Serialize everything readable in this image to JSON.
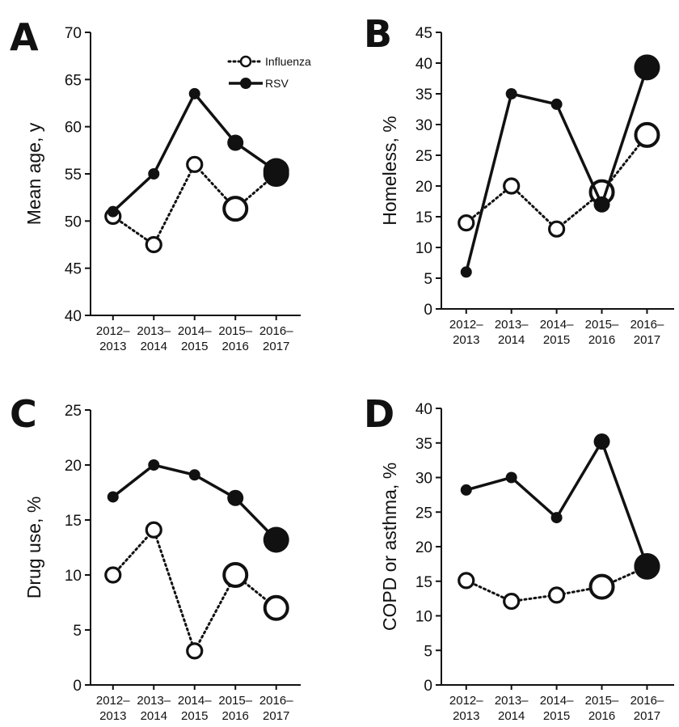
{
  "chart_data": [
    {
      "type": "line",
      "panel": "A",
      "ylabel": "Mean age, y",
      "ylim": [
        40,
        70
      ],
      "yticks": [
        40,
        45,
        50,
        55,
        60,
        65,
        70
      ],
      "categories": [
        [
          "2012–",
          "2013"
        ],
        [
          "2013–",
          "2014"
        ],
        [
          "2014–",
          "2015"
        ],
        [
          "2015–",
          "2016"
        ],
        [
          "2016–",
          "2017"
        ]
      ],
      "legend": {
        "position": "top-right",
        "items": [
          "Influenza",
          "RSV"
        ]
      },
      "series": [
        {
          "name": "Influenza",
          "style": "dotted-open",
          "values": [
            50.5,
            47.5,
            56,
            51.3,
            55
          ],
          "marker_sizes": [
            9,
            9,
            9,
            14,
            14
          ]
        },
        {
          "name": "RSV",
          "style": "solid-filled",
          "values": [
            51,
            55,
            63.5,
            58.3,
            55.3
          ],
          "marker_sizes": [
            7,
            7,
            7,
            10,
            16
          ]
        }
      ]
    },
    {
      "type": "line",
      "panel": "B",
      "ylabel": "Homeless, %",
      "ylim": [
        0,
        45
      ],
      "yticks": [
        0,
        5,
        10,
        15,
        20,
        25,
        30,
        35,
        40,
        45
      ],
      "categories": [
        [
          "2012–",
          "2013"
        ],
        [
          "2013–",
          "2014"
        ],
        [
          "2014–",
          "2015"
        ],
        [
          "2015–",
          "2016"
        ],
        [
          "2016–",
          "2017"
        ]
      ],
      "series": [
        {
          "name": "Influenza",
          "style": "dotted-open",
          "values": [
            14,
            20,
            13,
            19,
            28.3
          ],
          "marker_sizes": [
            9,
            9,
            9,
            14,
            14
          ]
        },
        {
          "name": "RSV",
          "style": "solid-filled",
          "values": [
            6,
            35,
            33.3,
            17,
            39.3
          ],
          "marker_sizes": [
            7,
            7,
            7,
            10,
            16
          ]
        }
      ]
    },
    {
      "type": "line",
      "panel": "C",
      "ylabel": "Drug use, %",
      "ylim": [
        0,
        25
      ],
      "yticks": [
        0,
        5,
        10,
        15,
        20,
        25
      ],
      "categories": [
        [
          "2012–",
          "2013"
        ],
        [
          "2013–",
          "2014"
        ],
        [
          "2014–",
          "2015"
        ],
        [
          "2015–",
          "2016"
        ],
        [
          "2016–",
          "2017"
        ]
      ],
      "series": [
        {
          "name": "Influenza",
          "style": "dotted-open",
          "values": [
            10,
            14.1,
            3.1,
            10,
            7
          ],
          "marker_sizes": [
            9,
            9,
            9,
            14,
            14
          ]
        },
        {
          "name": "RSV",
          "style": "solid-filled",
          "values": [
            17.1,
            20,
            19.1,
            17,
            13.2
          ],
          "marker_sizes": [
            7,
            7,
            7,
            10,
            16
          ]
        }
      ]
    },
    {
      "type": "line",
      "panel": "D",
      "ylabel": "COPD or asthma, %",
      "ylim": [
        0,
        40
      ],
      "yticks": [
        0,
        5,
        10,
        15,
        20,
        25,
        30,
        35,
        40
      ],
      "categories": [
        [
          "2012–",
          "2013"
        ],
        [
          "2013–",
          "2014"
        ],
        [
          "2014–",
          "2015"
        ],
        [
          "2015–",
          "2016"
        ],
        [
          "2016–",
          "2017"
        ]
      ],
      "series": [
        {
          "name": "Influenza",
          "style": "dotted-open",
          "values": [
            15.1,
            12.1,
            13,
            14.2,
            17.1
          ],
          "marker_sizes": [
            9,
            9,
            9,
            14,
            14
          ]
        },
        {
          "name": "RSV",
          "style": "solid-filled",
          "values": [
            28.2,
            30,
            24.2,
            35.2,
            17.2
          ],
          "marker_sizes": [
            7,
            7,
            7,
            10,
            16
          ]
        }
      ]
    }
  ]
}
